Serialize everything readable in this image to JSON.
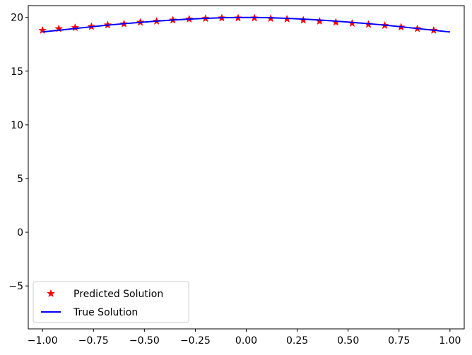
{
  "chart_data": {
    "type": "line",
    "title": "",
    "xlabel": "",
    "ylabel": "",
    "xlim": [
      -1.07,
      1.07
    ],
    "ylim": [
      -9.0,
      21.1
    ],
    "grid": false,
    "legend_position": "lower-left",
    "x_ticks": [
      {
        "value": -1.0,
        "label": "−1.00"
      },
      {
        "value": -0.75,
        "label": "−0.75"
      },
      {
        "value": -0.5,
        "label": "−0.50"
      },
      {
        "value": -0.25,
        "label": "−0.25"
      },
      {
        "value": 0.0,
        "label": "0.00"
      },
      {
        "value": 0.25,
        "label": "0.25"
      },
      {
        "value": 0.5,
        "label": "0.50"
      },
      {
        "value": 0.75,
        "label": "0.75"
      },
      {
        "value": 1.0,
        "label": "1.00"
      }
    ],
    "y_ticks": [
      {
        "value": -5,
        "label": "−5"
      },
      {
        "value": 0,
        "label": "0"
      },
      {
        "value": 5,
        "label": "5"
      },
      {
        "value": 10,
        "label": "10"
      },
      {
        "value": 15,
        "label": "15"
      },
      {
        "value": 20,
        "label": "20"
      }
    ],
    "series": [
      {
        "name": "Predicted Solution",
        "kind": "scatter",
        "marker": "star",
        "color": "#ff0000",
        "x": [
          -1.0,
          -0.92,
          -0.84,
          -0.76,
          -0.68,
          -0.6,
          -0.52,
          -0.44,
          -0.36,
          -0.28,
          -0.2,
          -0.12,
          -0.04,
          0.04,
          0.12,
          0.2,
          0.28,
          0.36,
          0.44,
          0.52,
          0.6,
          0.68,
          0.76,
          0.84,
          0.92
        ],
        "y": [
          18.8,
          18.95,
          19.05,
          19.15,
          19.3,
          19.4,
          19.55,
          19.65,
          19.75,
          19.85,
          19.9,
          19.95,
          19.95,
          19.95,
          19.9,
          19.85,
          19.75,
          19.65,
          19.55,
          19.45,
          19.35,
          19.25,
          19.1,
          18.95,
          18.8
        ]
      },
      {
        "name": "True Solution",
        "kind": "line",
        "color": "#0000ff",
        "x": [
          -1.0,
          -0.9,
          -0.8,
          -0.7,
          -0.6,
          -0.5,
          -0.4,
          -0.3,
          -0.2,
          -0.1,
          0.0,
          0.1,
          0.2,
          0.3,
          0.4,
          0.5,
          0.6,
          0.7,
          0.8,
          0.9,
          1.0
        ],
        "y": [
          18.65,
          18.85,
          19.05,
          19.25,
          19.42,
          19.57,
          19.71,
          19.83,
          19.92,
          19.98,
          20.0,
          19.98,
          19.92,
          19.83,
          19.71,
          19.57,
          19.42,
          19.25,
          19.05,
          18.85,
          18.65
        ]
      }
    ]
  }
}
